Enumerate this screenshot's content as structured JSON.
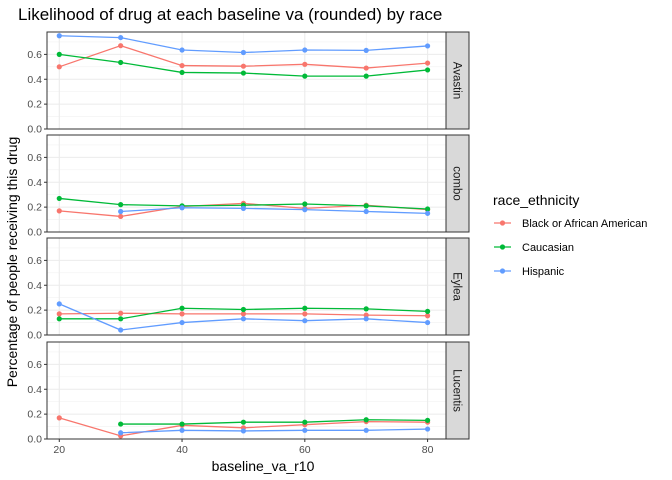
{
  "chart_data": {
    "type": "line",
    "title": "Likelihood of drug at each baseline va (rounded) by race",
    "xlabel": "baseline_va_r10",
    "ylabel": "Percentage of people receiving this drug",
    "xlim": [
      18,
      83
    ],
    "ylim": [
      0,
      0.78
    ],
    "x_ticks": [
      20,
      40,
      60,
      80
    ],
    "y_ticks": [
      0.0,
      0.2,
      0.4,
      0.6
    ],
    "y_tick_labels": [
      "0.0",
      "0.2",
      "0.4",
      "0.6"
    ],
    "grid": true,
    "legend": {
      "title": "race_ethnicity",
      "position": "right",
      "entries": [
        "Black or African American",
        "Caucasian",
        "Hispanic"
      ]
    },
    "colors": {
      "Black or African American": "#F8766D",
      "Caucasian": "#00BA38",
      "Hispanic": "#619CFF"
    },
    "facets": [
      {
        "label": "Avastin",
        "series": [
          {
            "name": "Black or African American",
            "x": [
              20,
              30,
              40,
              50,
              60,
              70,
              80
            ],
            "values": [
              0.5,
              0.67,
              0.51,
              0.505,
              0.52,
              0.49,
              0.53
            ]
          },
          {
            "name": "Caucasian",
            "x": [
              20,
              30,
              40,
              50,
              60,
              70,
              80
            ],
            "values": [
              0.6,
              0.535,
              0.455,
              0.45,
              0.425,
              0.425,
              0.475
            ]
          },
          {
            "name": "Hispanic",
            "x": [
              20,
              30,
              40,
              50,
              60,
              70,
              80
            ],
            "values": [
              0.75,
              0.735,
              0.635,
              0.615,
              0.635,
              0.632,
              0.668
            ]
          }
        ]
      },
      {
        "label": "combo",
        "series": [
          {
            "name": "Black or African American",
            "x": [
              20,
              30,
              40,
              50,
              60,
              70,
              80
            ],
            "values": [
              0.17,
              0.125,
              0.205,
              0.23,
              0.19,
              0.215,
              0.18
            ]
          },
          {
            "name": "Caucasian",
            "x": [
              20,
              30,
              40,
              50,
              60,
              70,
              80
            ],
            "values": [
              0.27,
              0.22,
              0.21,
              0.215,
              0.225,
              0.21,
              0.185
            ]
          },
          {
            "name": "Hispanic",
            "x": [
              20,
              30,
              40,
              50,
              60,
              70,
              80
            ],
            "values": [
              null,
              0.165,
              0.195,
              0.19,
              0.18,
              0.165,
              0.15
            ]
          }
        ]
      },
      {
        "label": "Eylea",
        "series": [
          {
            "name": "Black or African American",
            "x": [
              20,
              30,
              40,
              50,
              60,
              70,
              80
            ],
            "values": [
              0.17,
              0.175,
              0.17,
              0.17,
              0.17,
              0.16,
              0.155
            ]
          },
          {
            "name": "Caucasian",
            "x": [
              20,
              30,
              40,
              50,
              60,
              70,
              80
            ],
            "values": [
              0.13,
              0.13,
              0.215,
              0.205,
              0.215,
              0.21,
              0.19
            ]
          },
          {
            "name": "Hispanic",
            "x": [
              20,
              30,
              40,
              50,
              60,
              70,
              80
            ],
            "values": [
              0.25,
              0.04,
              0.1,
              0.13,
              0.115,
              0.13,
              0.1
            ]
          }
        ]
      },
      {
        "label": "Lucentis",
        "series": [
          {
            "name": "Black or African American",
            "x": [
              20,
              30,
              40,
              50,
              60,
              70,
              80
            ],
            "values": [
              0.17,
              0.025,
              0.11,
              0.09,
              0.115,
              0.14,
              0.135
            ]
          },
          {
            "name": "Caucasian",
            "x": [
              20,
              30,
              40,
              50,
              60,
              70,
              80
            ],
            "values": [
              null,
              0.12,
              0.12,
              0.135,
              0.135,
              0.155,
              0.15
            ]
          },
          {
            "name": "Hispanic",
            "x": [
              20,
              30,
              40,
              50,
              60,
              70,
              80
            ],
            "values": [
              null,
              0.05,
              0.07,
              0.065,
              0.07,
              0.07,
              0.08
            ]
          }
        ]
      }
    ]
  }
}
